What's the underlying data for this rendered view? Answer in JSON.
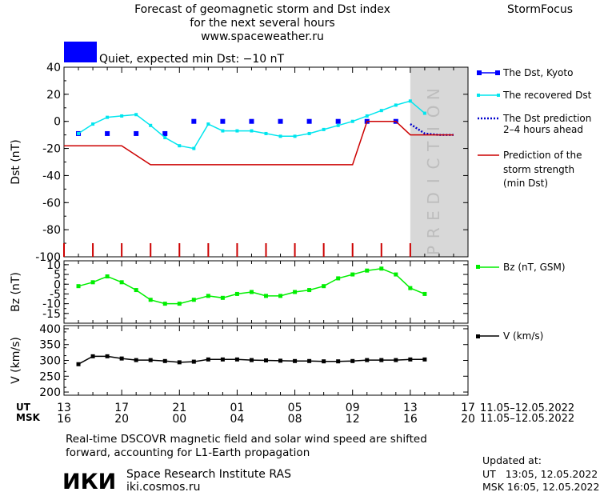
{
  "header": {
    "title_lines": [
      "Forecast of geomagnetic storm and Dst index",
      "for the next several hours",
      "www.spaceweather.ru"
    ],
    "brand": "StormFocus",
    "status_text": "Quiet, expected min Dst: −10 nT"
  },
  "colors": {
    "status_box": "#0000ff",
    "dst_kyoto": "#0000ff",
    "dst_recovered": "#00e5ee",
    "dst_prediction": "#0000cc",
    "storm_strength": "#cc0000",
    "bz": "#00ee00",
    "v": "#000000",
    "prediction_band": "#d8d8d8",
    "prediction_text": "#bdbdbd"
  },
  "prediction_label": "PREDICTION",
  "legend": {
    "kyoto": "The Dst, Kyoto",
    "recovered": "The recovered Dst",
    "prediction": [
      "The Dst prediction",
      "2–4 hours ahead"
    ],
    "storm": [
      "Prediction of the",
      "storm strength",
      "(min Dst)"
    ],
    "bz": "Bz (nT, GSM)",
    "v": "V (km/s)"
  },
  "time_axis": {
    "ut_label": "UT",
    "msk_label": "MSK",
    "ut_ticks": [
      "13",
      "17",
      "21",
      "01",
      "05",
      "09",
      "13",
      "17"
    ],
    "msk_ticks": [
      "16",
      "20",
      "00",
      "04",
      "08",
      "12",
      "16",
      "20"
    ],
    "date_range": "11.05–12.05.2022"
  },
  "chart_data": [
    {
      "type": "line",
      "ylabel": "Dst (nT)",
      "ylim": [
        -100,
        40
      ],
      "yticks": [
        40,
        20,
        0,
        -20,
        -40,
        -60,
        -80,
        -100
      ],
      "xlim": [
        0,
        28
      ],
      "prediction_start": 24,
      "series": [
        {
          "name": "The Dst, Kyoto",
          "x": [
            1,
            3,
            5,
            7,
            9,
            11,
            13,
            15,
            17,
            19,
            21,
            23
          ],
          "y": [
            -9,
            -9,
            -9,
            -9,
            0,
            0,
            0,
            0,
            0,
            0,
            0,
            0
          ]
        },
        {
          "name": "The recovered Dst",
          "x": [
            1,
            2,
            3,
            4,
            5,
            6,
            7,
            8,
            9,
            10,
            11,
            12,
            13,
            14,
            15,
            16,
            17,
            18,
            19,
            20,
            21,
            22,
            23,
            24,
            25
          ],
          "y": [
            -9,
            -2,
            3,
            4,
            5,
            -3,
            -12,
            -18,
            -20,
            -2,
            -7,
            -7,
            -7,
            -9,
            -11,
            -11,
            -9,
            -6,
            -3,
            0,
            4,
            8,
            12,
            15,
            6
          ]
        },
        {
          "name": "The Dst prediction 2–4 hours ahead",
          "x": [
            24,
            25,
            26,
            27
          ],
          "y": [
            -2,
            -9,
            -10,
            -10
          ]
        },
        {
          "name": "Prediction of the storm strength (min Dst)",
          "x": [
            0,
            4,
            6,
            20,
            21,
            23,
            24,
            27
          ],
          "y": [
            -18,
            -18,
            -32,
            -32,
            0,
            0,
            -10,
            -10
          ]
        }
      ]
    },
    {
      "type": "line",
      "ylabel": "Bz (nT)",
      "ylim": [
        -20,
        12
      ],
      "yticks": [
        10,
        5,
        0,
        -5,
        -10,
        -15
      ],
      "xlim": [
        0,
        28
      ],
      "series": [
        {
          "name": "Bz (nT, GSM)",
          "x": [
            1,
            2,
            3,
            4,
            5,
            6,
            7,
            8,
            9,
            10,
            11,
            12,
            13,
            14,
            15,
            16,
            17,
            18,
            19,
            20,
            21,
            22,
            23,
            24,
            25
          ],
          "y": [
            -1,
            1,
            4,
            1,
            -3,
            -8,
            -10,
            -10,
            -8,
            -6,
            -7,
            -5,
            -4,
            -6,
            -6,
            -4,
            -3,
            -1,
            3,
            5,
            7,
            8,
            5,
            -2,
            -5
          ]
        }
      ]
    },
    {
      "type": "line",
      "ylabel": "V (km/s)",
      "ylim": [
        190,
        410
      ],
      "yticks": [
        400,
        350,
        300,
        250,
        200
      ],
      "xlim": [
        0,
        28
      ],
      "series": [
        {
          "name": "V (km/s)",
          "x": [
            1,
            2,
            3,
            4,
            5,
            6,
            7,
            8,
            9,
            10,
            11,
            12,
            13,
            14,
            15,
            16,
            17,
            18,
            19,
            20,
            21,
            22,
            23,
            24,
            25
          ],
          "y": [
            288,
            313,
            313,
            306,
            301,
            301,
            298,
            294,
            296,
            303,
            303,
            303,
            301,
            300,
            299,
            298,
            298,
            297,
            297,
            298,
            301,
            301,
            301,
            303,
            303
          ]
        }
      ]
    }
  ],
  "footer": {
    "note_lines": [
      "Real-time DSCOVR magnetic field and solar wind speed are shifted",
      "forward, accounting for L1-Earth propagation"
    ],
    "logo_text": "ИКИ",
    "institute": "Space Research Institute RAS",
    "site": "iki.cosmos.ru",
    "updated_label": "Updated at:",
    "updated_ut": "UT   13:05, 12.05.2022",
    "updated_msk": "MSK 16:05, 12.05.2022"
  }
}
